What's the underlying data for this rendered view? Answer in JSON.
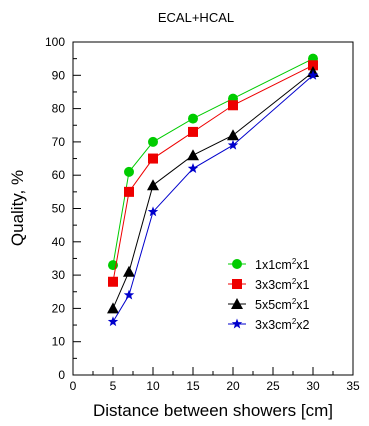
{
  "chart_data": {
    "type": "line",
    "title": "ECAL+HCAL",
    "xlabel": "Distance between showers [cm]",
    "ylabel": "Quality, %",
    "xlim": [
      0,
      35
    ],
    "ylim": [
      0,
      100
    ],
    "xticks": [
      "0",
      "5",
      "10",
      "15",
      "20",
      "25",
      "30",
      "35"
    ],
    "yticks": [
      "0",
      "10",
      "20",
      "30",
      "40",
      "50",
      "60",
      "70",
      "80",
      "90",
      "100"
    ],
    "grid": false,
    "legend_position": "bottom-right",
    "x": [
      5,
      7,
      10,
      15,
      20,
      30
    ],
    "series": [
      {
        "name_parts": [
          "1x1cm",
          "2",
          "x1"
        ],
        "color": "#00cc00",
        "marker": "circle",
        "values": [
          33,
          61,
          70,
          77,
          83,
          95
        ]
      },
      {
        "name_parts": [
          "3x3cm",
          "2",
          "x1"
        ],
        "color": "#ee0000",
        "marker": "square",
        "values": [
          28,
          55,
          65,
          73,
          81,
          93
        ]
      },
      {
        "name_parts": [
          "5x5cm",
          "2",
          "x1"
        ],
        "color": "#000000",
        "marker": "triangle",
        "values": [
          20,
          31,
          57,
          66,
          72,
          91
        ]
      },
      {
        "name_parts": [
          "3x3cm",
          "2",
          "x2"
        ],
        "color": "#0000cc",
        "marker": "star",
        "values": [
          16,
          24,
          49,
          62,
          69,
          90
        ]
      }
    ]
  }
}
